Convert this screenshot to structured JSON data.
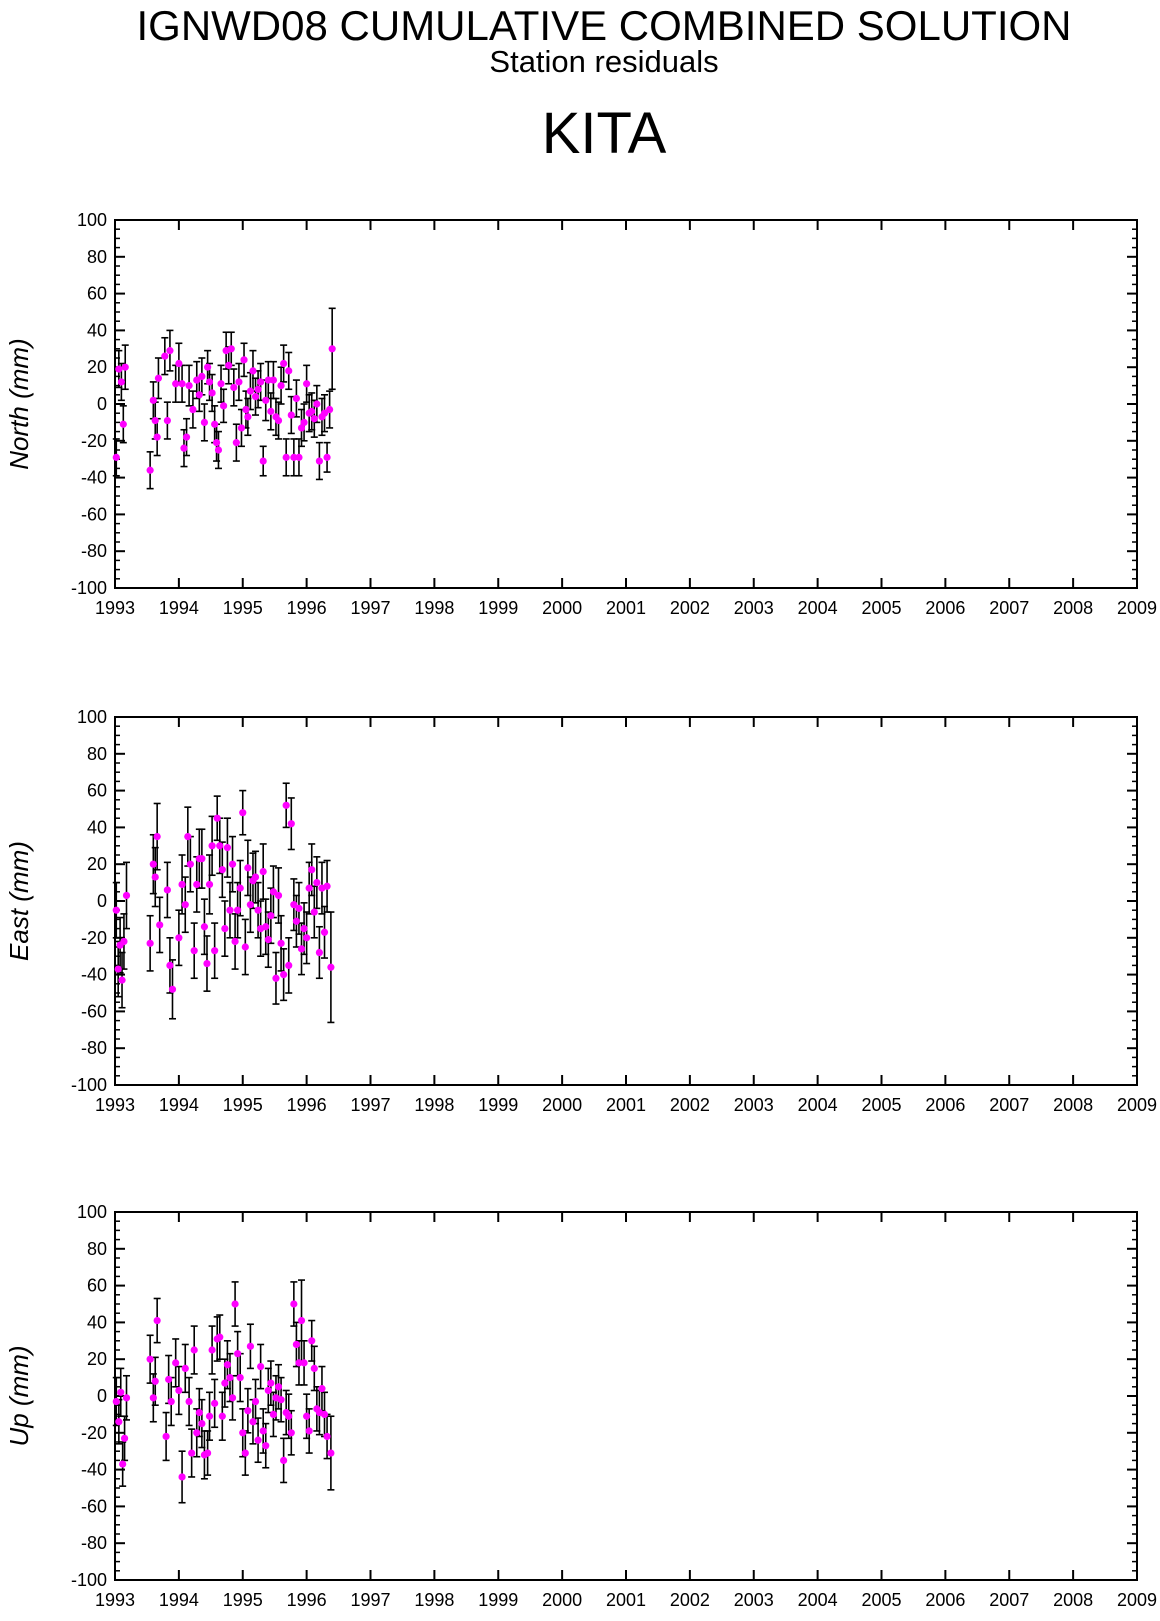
{
  "header": {
    "title": "IGNWD08 CUMULATIVE COMBINED SOLUTION",
    "subtitle": "Station residuals",
    "station": "KITA"
  },
  "colors": {
    "point": "#ff00ff",
    "errorbar": "#000000",
    "axis": "#000000"
  },
  "chart_data": [
    {
      "type": "scatter",
      "ylabel": "North (mm)",
      "xlim": [
        1993,
        2009
      ],
      "ylim": [
        -100,
        100
      ],
      "xticks": [
        "1993",
        "1994",
        "1995",
        "1996",
        "1997",
        "1998",
        "1999",
        "2000",
        "2001",
        "2002",
        "2003",
        "2004",
        "2005",
        "2006",
        "2007",
        "2008",
        "2009"
      ],
      "yticks": [
        "100",
        "80",
        "60",
        "40",
        "20",
        "0",
        "-20",
        "-40",
        "-60",
        "-80",
        "-100"
      ],
      "grid": false,
      "points": [
        [
          1993.02,
          -29,
          10
        ],
        [
          1993.06,
          19,
          10
        ],
        [
          1993.1,
          12,
          10
        ],
        [
          1993.13,
          -11,
          10
        ],
        [
          1993.16,
          20,
          12
        ],
        [
          1993.55,
          -36,
          10
        ],
        [
          1993.6,
          2,
          10
        ],
        [
          1993.63,
          -9,
          10
        ],
        [
          1993.66,
          -18,
          10
        ],
        [
          1993.68,
          14,
          11
        ],
        [
          1993.78,
          26,
          10
        ],
        [
          1993.82,
          -9,
          10
        ],
        [
          1993.86,
          29,
          11
        ],
        [
          1993.95,
          11,
          10
        ],
        [
          1994.0,
          22,
          11
        ],
        [
          1994.05,
          11,
          10
        ],
        [
          1994.08,
          -24,
          10
        ],
        [
          1994.12,
          -18,
          10
        ],
        [
          1994.16,
          10,
          11
        ],
        [
          1994.22,
          -3,
          10
        ],
        [
          1994.28,
          13,
          10
        ],
        [
          1994.32,
          5,
          9
        ],
        [
          1994.36,
          15,
          10
        ],
        [
          1994.4,
          -10,
          10
        ],
        [
          1994.45,
          20,
          9
        ],
        [
          1994.48,
          12,
          10
        ],
        [
          1994.52,
          6,
          10
        ],
        [
          1994.56,
          -11,
          10
        ],
        [
          1994.59,
          -21,
          10
        ],
        [
          1994.62,
          -25,
          10
        ],
        [
          1994.66,
          11,
          10
        ],
        [
          1994.7,
          -1,
          9
        ],
        [
          1994.74,
          29,
          10
        ],
        [
          1994.78,
          21,
          10
        ],
        [
          1994.82,
          30,
          9
        ],
        [
          1994.86,
          9,
          10
        ],
        [
          1994.9,
          -21,
          10
        ],
        [
          1994.94,
          12,
          10
        ],
        [
          1994.98,
          -13,
          10
        ],
        [
          1995.02,
          24,
          9
        ],
        [
          1995.05,
          -3,
          10
        ],
        [
          1995.08,
          -7,
          10
        ],
        [
          1995.12,
          7,
          10
        ],
        [
          1995.16,
          18,
          11
        ],
        [
          1995.2,
          4,
          10
        ],
        [
          1995.24,
          8,
          10
        ],
        [
          1995.28,
          12,
          10
        ],
        [
          1995.32,
          -31,
          8
        ],
        [
          1995.36,
          2,
          11
        ],
        [
          1995.4,
          13,
          10
        ],
        [
          1995.44,
          -4,
          10
        ],
        [
          1995.48,
          13,
          10
        ],
        [
          1995.52,
          -7,
          10
        ],
        [
          1995.56,
          -9,
          10
        ],
        [
          1995.6,
          10,
          10
        ],
        [
          1995.64,
          22,
          10
        ],
        [
          1995.68,
          -29,
          10
        ],
        [
          1995.72,
          18,
          10
        ],
        [
          1995.76,
          -6,
          10
        ],
        [
          1995.8,
          -29,
          10
        ],
        [
          1995.84,
          3,
          10
        ],
        [
          1995.88,
          -29,
          10
        ],
        [
          1995.92,
          -13,
          10
        ],
        [
          1995.96,
          -10,
          10
        ],
        [
          1996.0,
          11,
          10
        ],
        [
          1996.04,
          -5,
          10
        ],
        [
          1996.08,
          -4,
          10
        ],
        [
          1996.12,
          -8,
          10
        ],
        [
          1996.16,
          0,
          10
        ],
        [
          1996.2,
          -31,
          10
        ],
        [
          1996.24,
          -7,
          10
        ],
        [
          1996.28,
          -5,
          10
        ],
        [
          1996.32,
          -29,
          8
        ],
        [
          1996.36,
          -3,
          10
        ],
        [
          1996.4,
          30,
          22
        ]
      ]
    },
    {
      "type": "scatter",
      "ylabel": "East (mm)",
      "xlim": [
        1993,
        2009
      ],
      "ylim": [
        -100,
        100
      ],
      "xticks": [
        "1993",
        "1994",
        "1995",
        "1996",
        "1997",
        "1998",
        "1999",
        "2000",
        "2001",
        "2002",
        "2003",
        "2004",
        "2005",
        "2006",
        "2007",
        "2008",
        "2009"
      ],
      "yticks": [
        "100",
        "80",
        "60",
        "40",
        "20",
        "0",
        "-20",
        "-40",
        "-60",
        "-80",
        "-100"
      ],
      "grid": false,
      "points": [
        [
          1993.02,
          -5,
          15
        ],
        [
          1993.05,
          -37,
          15
        ],
        [
          1993.08,
          -24,
          15
        ],
        [
          1993.11,
          -43,
          15
        ],
        [
          1993.14,
          -22,
          15
        ],
        [
          1993.18,
          3,
          18
        ],
        [
          1993.55,
          -23,
          15
        ],
        [
          1993.6,
          20,
          16
        ],
        [
          1993.63,
          13,
          16
        ],
        [
          1993.66,
          35,
          18
        ],
        [
          1993.7,
          -13,
          15
        ],
        [
          1993.82,
          6,
          15
        ],
        [
          1993.86,
          -35,
          15
        ],
        [
          1993.9,
          -48,
          16
        ],
        [
          1994.0,
          -20,
          15
        ],
        [
          1994.05,
          9,
          16
        ],
        [
          1994.1,
          -2,
          15
        ],
        [
          1994.14,
          35,
          16
        ],
        [
          1994.18,
          20,
          15
        ],
        [
          1994.24,
          -27,
          15
        ],
        [
          1994.28,
          9,
          15
        ],
        [
          1994.32,
          23,
          16
        ],
        [
          1994.36,
          23,
          16
        ],
        [
          1994.4,
          -14,
          15
        ],
        [
          1994.44,
          -34,
          15
        ],
        [
          1994.48,
          9,
          16
        ],
        [
          1994.52,
          30,
          16
        ],
        [
          1994.56,
          -27,
          15
        ],
        [
          1994.6,
          45,
          12
        ],
        [
          1994.64,
          30,
          15
        ],
        [
          1994.68,
          17,
          15
        ],
        [
          1994.72,
          -15,
          15
        ],
        [
          1994.76,
          29,
          16
        ],
        [
          1994.8,
          -5,
          15
        ],
        [
          1994.84,
          20,
          15
        ],
        [
          1994.88,
          -22,
          15
        ],
        [
          1994.92,
          -5,
          15
        ],
        [
          1994.96,
          7,
          15
        ],
        [
          1995.0,
          48,
          12
        ],
        [
          1995.04,
          -25,
          15
        ],
        [
          1995.08,
          18,
          15
        ],
        [
          1995.12,
          -2,
          15
        ],
        [
          1995.16,
          11,
          15
        ],
        [
          1995.2,
          13,
          14
        ],
        [
          1995.24,
          -5,
          15
        ],
        [
          1995.28,
          -15,
          15
        ],
        [
          1995.32,
          16,
          15
        ],
        [
          1995.36,
          -14,
          15
        ],
        [
          1995.4,
          -21,
          15
        ],
        [
          1995.44,
          -8,
          15
        ],
        [
          1995.48,
          5,
          14
        ],
        [
          1995.52,
          -42,
          14
        ],
        [
          1995.56,
          3,
          15
        ],
        [
          1995.6,
          -23,
          15
        ],
        [
          1995.64,
          -40,
          14
        ],
        [
          1995.68,
          52,
          12
        ],
        [
          1995.72,
          -35,
          15
        ],
        [
          1995.76,
          42,
          14
        ],
        [
          1995.8,
          -2,
          14
        ],
        [
          1995.84,
          -11,
          14
        ],
        [
          1995.88,
          -4,
          14
        ],
        [
          1995.92,
          -26,
          14
        ],
        [
          1995.96,
          -15,
          14
        ],
        [
          1996.0,
          -20,
          14
        ],
        [
          1996.04,
          7,
          14
        ],
        [
          1996.08,
          17,
          14
        ],
        [
          1996.12,
          -6,
          14
        ],
        [
          1996.16,
          10,
          14
        ],
        [
          1996.2,
          -28,
          14
        ],
        [
          1996.24,
          7,
          14
        ],
        [
          1996.28,
          -17,
          14
        ],
        [
          1996.32,
          8,
          14
        ],
        [
          1996.38,
          -36,
          30
        ]
      ]
    },
    {
      "type": "scatter",
      "ylabel": "Up (mm)",
      "xlim": [
        1993,
        2009
      ],
      "ylim": [
        -100,
        100
      ],
      "xticks": [
        "1993",
        "1994",
        "1995",
        "1996",
        "1997",
        "1998",
        "1999",
        "2000",
        "2001",
        "2002",
        "2003",
        "2004",
        "2005",
        "2006",
        "2007",
        "2008",
        "2009"
      ],
      "yticks": [
        "100",
        "80",
        "60",
        "40",
        "20",
        "0",
        "-20",
        "-40",
        "-60",
        "-80",
        "-100"
      ],
      "grid": false,
      "points": [
        [
          1993.02,
          -3,
          13
        ],
        [
          1993.06,
          -14,
          12
        ],
        [
          1993.09,
          2,
          13
        ],
        [
          1993.12,
          -37,
          12
        ],
        [
          1993.15,
          -23,
          12
        ],
        [
          1993.18,
          -1,
          12
        ],
        [
          1993.55,
          20,
          13
        ],
        [
          1993.6,
          -1,
          13
        ],
        [
          1993.63,
          8,
          13
        ],
        [
          1993.66,
          41,
          12
        ],
        [
          1993.8,
          -22,
          13
        ],
        [
          1993.84,
          9,
          13
        ],
        [
          1993.88,
          -3,
          13
        ],
        [
          1993.95,
          18,
          13
        ],
        [
          1994.0,
          3,
          13
        ],
        [
          1994.05,
          -44,
          14
        ],
        [
          1994.1,
          15,
          13
        ],
        [
          1994.16,
          -3,
          13
        ],
        [
          1994.2,
          -31,
          13
        ],
        [
          1994.24,
          25,
          13
        ],
        [
          1994.28,
          -20,
          13
        ],
        [
          1994.32,
          -9,
          13
        ],
        [
          1994.36,
          -15,
          13
        ],
        [
          1994.4,
          -32,
          13
        ],
        [
          1994.45,
          -31,
          12
        ],
        [
          1994.48,
          -11,
          13
        ],
        [
          1994.52,
          25,
          13
        ],
        [
          1994.56,
          -4,
          13
        ],
        [
          1994.6,
          31,
          12
        ],
        [
          1994.64,
          32,
          12
        ],
        [
          1994.68,
          -11,
          13
        ],
        [
          1994.72,
          7,
          13
        ],
        [
          1994.76,
          17,
          13
        ],
        [
          1994.8,
          10,
          13
        ],
        [
          1994.84,
          -1,
          12
        ],
        [
          1994.88,
          50,
          12
        ],
        [
          1994.92,
          23,
          12
        ],
        [
          1994.96,
          10,
          13
        ],
        [
          1995.0,
          -20,
          13
        ],
        [
          1995.04,
          -31,
          12
        ],
        [
          1995.08,
          -8,
          12
        ],
        [
          1995.12,
          27,
          12
        ],
        [
          1995.16,
          -14,
          12
        ],
        [
          1995.2,
          -3,
          12
        ],
        [
          1995.24,
          -24,
          12
        ],
        [
          1995.28,
          16,
          12
        ],
        [
          1995.32,
          -19,
          12
        ],
        [
          1995.36,
          -27,
          12
        ],
        [
          1995.4,
          3,
          12
        ],
        [
          1995.44,
          7,
          12
        ],
        [
          1995.48,
          -10,
          12
        ],
        [
          1995.52,
          -1,
          12
        ],
        [
          1995.56,
          5,
          12
        ],
        [
          1995.6,
          -2,
          12
        ],
        [
          1995.64,
          -35,
          12
        ],
        [
          1995.68,
          -9,
          12
        ],
        [
          1995.72,
          -11,
          12
        ],
        [
          1995.76,
          -20,
          12
        ],
        [
          1995.8,
          50,
          12
        ],
        [
          1995.84,
          28,
          12
        ],
        [
          1995.88,
          18,
          12
        ],
        [
          1995.92,
          41,
          22
        ],
        [
          1995.96,
          18,
          12
        ],
        [
          1996.0,
          -11,
          12
        ],
        [
          1996.04,
          -19,
          12
        ],
        [
          1996.08,
          30,
          11
        ],
        [
          1996.12,
          15,
          12
        ],
        [
          1996.16,
          -7,
          12
        ],
        [
          1996.2,
          -9,
          12
        ],
        [
          1996.24,
          4,
          12
        ],
        [
          1996.28,
          -10,
          12
        ],
        [
          1996.32,
          -22,
          12
        ],
        [
          1996.38,
          -31,
          20
        ]
      ]
    }
  ]
}
